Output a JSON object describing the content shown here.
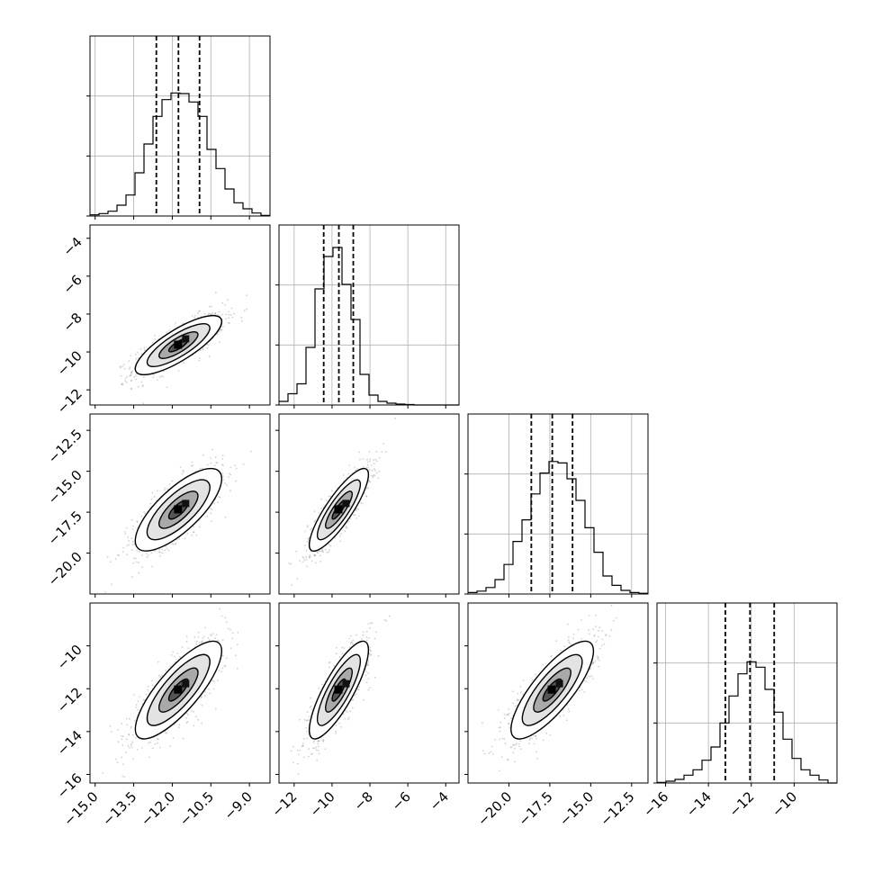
{
  "chart_data": {
    "type": "corner",
    "parameters": [
      {
        "range": [
          -15.2,
          -8.2
        ],
        "ticks": [
          -15.0,
          -13.5,
          -12.0,
          -10.5,
          -9.0
        ],
        "tick_labels": [
          "−15.0",
          "−13.5",
          "−12.0",
          "−10.5",
          "−9.0"
        ],
        "quantiles": [
          -12.62,
          -11.76,
          -10.94
        ],
        "hist_bins": [
          -15.2,
          -14.85,
          -14.5,
          -14.15,
          -13.8,
          -13.45,
          -13.1,
          -12.75,
          -12.4,
          -12.05,
          -11.7,
          -11.35,
          -11.0,
          -10.65,
          -10.3,
          -9.95,
          -9.6,
          -9.25,
          -8.9,
          -8.55,
          -8.2
        ],
        "hist_counts": [
          2,
          4,
          8,
          18,
          35,
          72,
          120,
          166,
          194,
          205,
          204,
          190,
          166,
          111,
          79,
          45,
          22,
          12,
          5,
          1
        ],
        "hist_max": 300
      },
      {
        "range": [
          -12.8,
          -3.3
        ],
        "ticks": [
          -12,
          -10,
          -8,
          -6,
          -4
        ],
        "tick_labels": [
          "−12",
          "−10",
          "−8",
          "−6",
          "−4"
        ],
        "quantiles": [
          -10.44,
          -9.64,
          -8.88
        ],
        "hist_bins": [
          -12.8,
          -12.325,
          -11.85,
          -11.375,
          -10.9,
          -10.425,
          -9.95,
          -9.475,
          -9.0,
          -8.525,
          -8.05,
          -7.575,
          -7.1,
          -6.625,
          -6.15,
          -5.675,
          -5.2,
          -4.725,
          -4.25,
          -3.775,
          -3.3
        ],
        "hist_counts": [
          8,
          25,
          47,
          128,
          258,
          330,
          350,
          268,
          190,
          68,
          22,
          8,
          4,
          2,
          1,
          0,
          0,
          0,
          0,
          0
        ],
        "hist_max": 400
      },
      {
        "range": [
          -22.5,
          -11.5
        ],
        "ticks": [
          -20.0,
          -17.5,
          -15.0,
          -12.5
        ],
        "tick_labels": [
          "−20.0",
          "−17.5",
          "−15.0",
          "−12.5"
        ],
        "quantiles": [
          -18.63,
          -17.35,
          -16.11
        ],
        "hist_bins": [
          -22.5,
          -21.95,
          -21.4,
          -20.85,
          -20.3,
          -19.75,
          -19.2,
          -18.65,
          -18.1,
          -17.55,
          -17.0,
          -16.45,
          -15.9,
          -15.35,
          -14.8,
          -14.25,
          -13.7,
          -13.15,
          -12.6,
          -12.05,
          -11.5
        ],
        "hist_counts": [
          2,
          4,
          9,
          20,
          41,
          73,
          103,
          139,
          168,
          184,
          182,
          160,
          130,
          92,
          58,
          25,
          12,
          5,
          2,
          1
        ],
        "hist_max": 250
      },
      {
        "range": [
          -16.4,
          -8.0
        ],
        "ticks": [
          -16,
          -14,
          -12,
          -10
        ],
        "tick_labels": [
          "−16",
          "−14",
          "−12",
          "−10"
        ],
        "quantiles": [
          -13.21,
          -12.06,
          -10.93
        ],
        "hist_bins": [
          -16.4,
          -15.98,
          -15.56,
          -15.14,
          -14.72,
          -14.3,
          -13.88,
          -13.46,
          -13.04,
          -12.62,
          -12.2,
          -11.78,
          -11.36,
          -10.94,
          -10.52,
          -10.1,
          -9.68,
          -9.26,
          -8.84,
          -8.42,
          -8.0
        ],
        "hist_counts": [
          1,
          3,
          6,
          13,
          22,
          38,
          60,
          100,
          145,
          182,
          202,
          193,
          156,
          118,
          73,
          41,
          22,
          13,
          5,
          0
        ],
        "hist_max": 300
      }
    ],
    "correlation": [
      [
        1.0,
        0.8,
        0.75,
        0.8
      ],
      [
        0.8,
        1.0,
        0.85,
        0.82
      ],
      [
        0.75,
        0.85,
        1.0,
        0.8
      ],
      [
        0.8,
        0.82,
        0.8,
        1.0
      ]
    ],
    "grid": true
  }
}
